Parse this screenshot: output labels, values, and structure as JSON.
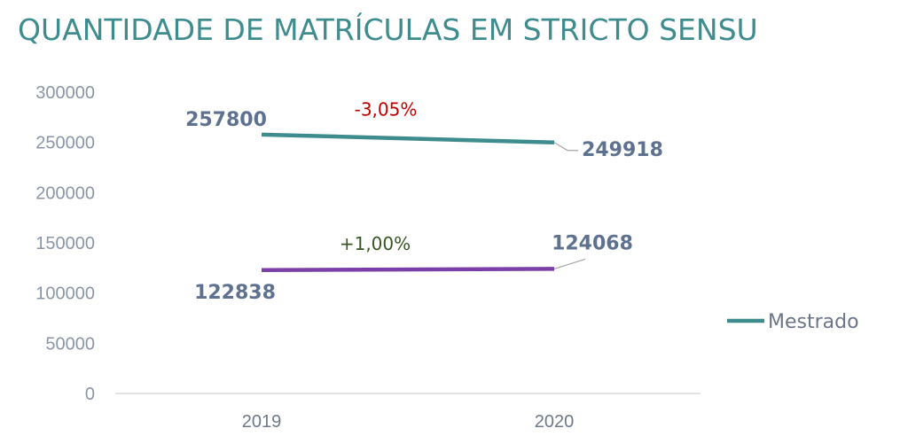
{
  "chart_data": {
    "type": "line",
    "title": "QUANTIDADE DE MATRÍCULAS EM STRICTO SENSU",
    "categories": [
      "2019",
      "2020"
    ],
    "ylim": [
      0,
      300000
    ],
    "yticks": [
      "0",
      "50000",
      "100000",
      "150000",
      "200000",
      "250000",
      "300000"
    ],
    "grid": false,
    "legend_position": "right",
    "series": [
      {
        "name": "Mestrado",
        "values": [
          257800,
          249918
        ],
        "labels": [
          "257800",
          "249918"
        ],
        "color": "#3e8c8e",
        "in_legend": true
      },
      {
        "values": [
          122838,
          124068
        ],
        "labels": [
          "122838",
          "124068"
        ],
        "color": "#7b3fa8",
        "in_legend": false
      }
    ],
    "annotations": [
      {
        "text": "-3,05%",
        "color": "#c00000"
      },
      {
        "text": "+1,00%",
        "color": "#375623"
      }
    ]
  }
}
